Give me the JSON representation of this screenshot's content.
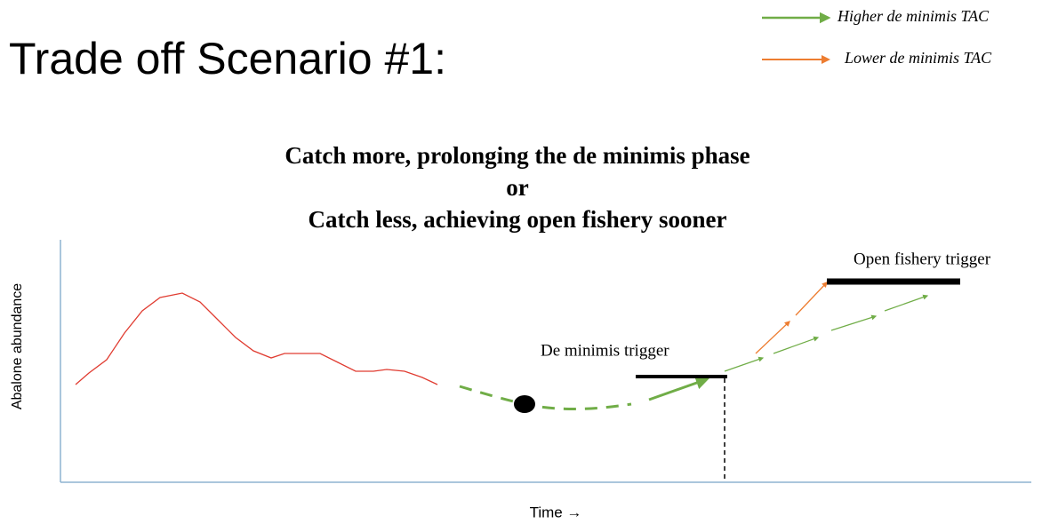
{
  "title": "Trade off Scenario #1:",
  "legend": [
    "Higher de minimis TAC",
    "Lower de minimis TAC"
  ],
  "subtitle": [
    "Catch more, prolonging the de minimis phase",
    "or",
    "Catch less, achieving open fishery sooner"
  ],
  "y_axis_label": "Abalone abundance",
  "x_axis_label": "Time →",
  "annotations": {
    "de_minimis": "De minimis trigger",
    "open_fishery": "Open fishery trigger"
  }
}
